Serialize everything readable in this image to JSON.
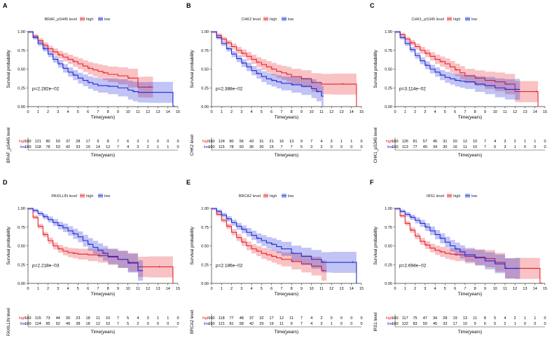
{
  "figure": {
    "shared": {
      "xlabel": "Time(years)",
      "ylabel": "Survival probability",
      "x_ticks": [
        "0",
        "1",
        "2",
        "3",
        "4",
        "5",
        "6",
        "7",
        "8",
        "9",
        "10",
        "11",
        "12",
        "13",
        "14",
        "15"
      ],
      "y_ticks": [
        "0.00",
        "0.25",
        "0.50",
        "0.75",
        "1.00"
      ],
      "high_label": "high",
      "low_label": "low",
      "high_color": "#e8232a",
      "low_color": "#1f2ad6"
    }
  },
  "chart_data": [
    {
      "type": "line",
      "panel_letter": "A",
      "legend_title": "BRAF_pS445 level",
      "table_ylabel": "BRAF_pS445 level",
      "pvalue": "p=2.282e−02",
      "xlim": [
        0,
        15
      ],
      "ylim": [
        0,
        1
      ],
      "series": [
        {
          "name": "high",
          "x": [
            0,
            0.5,
            1,
            1.5,
            2,
            2.5,
            3,
            3.5,
            4,
            4.5,
            5,
            5.5,
            6,
            6.5,
            7,
            7.5,
            8,
            9,
            10,
            11,
            11.5,
            12,
            12.5
          ],
          "y": [
            1,
            0.94,
            0.88,
            0.82,
            0.77,
            0.73,
            0.69,
            0.66,
            0.63,
            0.6,
            0.57,
            0.54,
            0.51,
            0.49,
            0.47,
            0.45,
            0.43,
            0.41,
            0.38,
            0.26,
            0.26,
            0.26,
            0.26
          ]
        },
        {
          "name": "low",
          "x": [
            0,
            0.5,
            1,
            1.5,
            2,
            2.5,
            3,
            3.5,
            4,
            4.5,
            5,
            5.5,
            6,
            6.5,
            7,
            8,
            9,
            10,
            10.5,
            11,
            12,
            14.5
          ],
          "y": [
            1,
            0.92,
            0.84,
            0.77,
            0.7,
            0.63,
            0.57,
            0.51,
            0.46,
            0.42,
            0.38,
            0.35,
            0.32,
            0.3,
            0.28,
            0.27,
            0.25,
            0.22,
            0.2,
            0.19,
            0.19,
            0
          ]
        }
      ],
      "risk_table": {
        "high": [
          "160",
          "121",
          "80",
          "53",
          "37",
          "28",
          "17",
          "9",
          "8",
          "7",
          "6",
          "3",
          "1",
          "0",
          "0",
          "0"
        ],
        "low": [
          "160",
          "118",
          "78",
          "53",
          "42",
          "33",
          "19",
          "14",
          "12",
          "7",
          "4",
          "3",
          "2",
          "1",
          "1",
          "0"
        ]
      }
    },
    {
      "type": "line",
      "panel_letter": "B",
      "legend_title": "CHK2 level",
      "table_ylabel": "CHK2 level",
      "pvalue": "p=2.388e−02",
      "xlim": [
        0,
        15
      ],
      "ylim": [
        0,
        1
      ],
      "series": [
        {
          "name": "high",
          "x": [
            0,
            0.5,
            1,
            1.5,
            2,
            2.5,
            3,
            3.5,
            4,
            4.5,
            5,
            5.5,
            6,
            6.5,
            7,
            7.5,
            8,
            9,
            10,
            11,
            12,
            13,
            14,
            14.5
          ],
          "y": [
            1,
            0.95,
            0.9,
            0.85,
            0.8,
            0.75,
            0.71,
            0.67,
            0.63,
            0.59,
            0.56,
            0.53,
            0.5,
            0.47,
            0.45,
            0.43,
            0.4,
            0.37,
            0.32,
            0.3,
            0.3,
            0.3,
            0.3,
            0
          ]
        },
        {
          "name": "low",
          "x": [
            0,
            0.5,
            1,
            1.5,
            2,
            2.5,
            3,
            3.5,
            4,
            4.5,
            5,
            5.5,
            6,
            6.5,
            7,
            8,
            9,
            10,
            10.5,
            11,
            11.2
          ],
          "y": [
            1,
            0.92,
            0.84,
            0.77,
            0.7,
            0.64,
            0.58,
            0.53,
            0.48,
            0.44,
            0.4,
            0.37,
            0.35,
            0.33,
            0.31,
            0.29,
            0.27,
            0.24,
            0.2,
            0.14,
            0.14
          ]
        }
      ],
      "risk_table": {
        "high": [
          "160",
          "124",
          "80",
          "56",
          "43",
          "31",
          "21",
          "16",
          "13",
          "9",
          "7",
          "4",
          "3",
          "1",
          "1",
          "0"
        ],
        "low": [
          "160",
          "115",
          "78",
          "50",
          "36",
          "30",
          "15",
          "7",
          "7",
          "5",
          "3",
          "2",
          "0",
          "0",
          "0",
          "0"
        ]
      }
    },
    {
      "type": "line",
      "panel_letter": "C",
      "legend_title": "CHK1_pS345 level",
      "table_ylabel": "CHK1_pS345 level",
      "pvalue": "p=3.114e−02",
      "xlim": [
        0,
        15
      ],
      "ylim": [
        0,
        1
      ],
      "series": [
        {
          "name": "high",
          "x": [
            0,
            0.5,
            1,
            1.5,
            2,
            2.5,
            3,
            3.5,
            4,
            4.5,
            5,
            5.5,
            6,
            6.5,
            7,
            8,
            9,
            10,
            11,
            12,
            13,
            14,
            14.3
          ],
          "y": [
            1,
            0.96,
            0.9,
            0.85,
            0.8,
            0.75,
            0.71,
            0.67,
            0.63,
            0.6,
            0.57,
            0.53,
            0.49,
            0.45,
            0.41,
            0.38,
            0.35,
            0.33,
            0.3,
            0.2,
            0.2,
            0.2,
            0
          ]
        },
        {
          "name": "low",
          "x": [
            0,
            0.5,
            1,
            1.5,
            2,
            2.5,
            3,
            3.5,
            4,
            4.5,
            5,
            5.5,
            6,
            6.5,
            7,
            8,
            9,
            10,
            11,
            12,
            12.5
          ],
          "y": [
            1,
            0.92,
            0.84,
            0.76,
            0.68,
            0.61,
            0.55,
            0.5,
            0.46,
            0.42,
            0.39,
            0.37,
            0.35,
            0.34,
            0.33,
            0.3,
            0.28,
            0.25,
            0.23,
            0.23,
            0.23
          ]
        }
      ],
      "risk_table": {
        "high": [
          "160",
          "126",
          "81",
          "57",
          "45",
          "31",
          "20",
          "12",
          "10",
          "7",
          "4",
          "3",
          "2",
          "1",
          "1",
          "0"
        ],
        "low": [
          "160",
          "113",
          "77",
          "49",
          "34",
          "30",
          "16",
          "11",
          "10",
          "7",
          "6",
          "3",
          "1",
          "0",
          "0",
          "0"
        ]
      }
    },
    {
      "type": "line",
      "panel_letter": "D",
      "legend_title": "PAXILLIN level",
      "table_ylabel": "PAXILLIN level",
      "pvalue": "p=2.218e−03",
      "xlim": [
        0,
        15
      ],
      "ylim": [
        0,
        1
      ],
      "series": [
        {
          "name": "high",
          "x": [
            0,
            0.5,
            1,
            1.5,
            2,
            2.5,
            3,
            3.5,
            4,
            4.5,
            5,
            6,
            7,
            8,
            9,
            10,
            11,
            12,
            13,
            14,
            14.5
          ],
          "y": [
            1,
            0.88,
            0.76,
            0.65,
            0.57,
            0.5,
            0.46,
            0.43,
            0.41,
            0.4,
            0.39,
            0.38,
            0.37,
            0.35,
            0.32,
            0.28,
            0.22,
            0.22,
            0.22,
            0.22,
            0
          ]
        },
        {
          "name": "low",
          "x": [
            0,
            0.5,
            1,
            1.5,
            2,
            2.5,
            3,
            3.5,
            4,
            4.5,
            5,
            5.5,
            6,
            6.5,
            7,
            7.5,
            8,
            9,
            10,
            11,
            11.5
          ],
          "y": [
            1,
            0.97,
            0.93,
            0.89,
            0.85,
            0.81,
            0.77,
            0.74,
            0.7,
            0.66,
            0.62,
            0.57,
            0.52,
            0.48,
            0.44,
            0.4,
            0.36,
            0.32,
            0.27,
            0.17,
            0.17
          ]
        }
      ],
      "risk_table": {
        "high": [
          "160",
          "115",
          "73",
          "44",
          "30",
          "23",
          "18",
          "11",
          "10",
          "7",
          "5",
          "4",
          "3",
          "1",
          "1",
          "0"
        ],
        "low": [
          "160",
          "124",
          "85",
          "62",
          "49",
          "38",
          "18",
          "12",
          "10",
          "7",
          "5",
          "2",
          "0",
          "0",
          "0",
          "0"
        ]
      }
    },
    {
      "type": "line",
      "panel_letter": "E",
      "legend_title": "BRCA2 level",
      "table_ylabel": "BRCA2 level",
      "pvalue": "p=2.186e−02",
      "xlim": [
        0,
        15
      ],
      "ylim": [
        0,
        1
      ],
      "series": [
        {
          "name": "high",
          "x": [
            0,
            0.5,
            1,
            1.5,
            2,
            2.5,
            3,
            3.5,
            4,
            4.5,
            5,
            5.5,
            6,
            6.5,
            7,
            8,
            9,
            10,
            11,
            11.5
          ],
          "y": [
            1,
            0.92,
            0.84,
            0.76,
            0.68,
            0.61,
            0.55,
            0.5,
            0.46,
            0.43,
            0.4,
            0.38,
            0.36,
            0.34,
            0.32,
            0.29,
            0.26,
            0.23,
            0.17,
            0.17
          ]
        },
        {
          "name": "low",
          "x": [
            0,
            0.5,
            1,
            1.5,
            2,
            2.5,
            3,
            3.5,
            4,
            4.5,
            5,
            5.5,
            6,
            6.5,
            7,
            8,
            9,
            10,
            11,
            12,
            13,
            14,
            14.5
          ],
          "y": [
            1,
            0.96,
            0.91,
            0.86,
            0.81,
            0.76,
            0.72,
            0.68,
            0.64,
            0.6,
            0.57,
            0.54,
            0.52,
            0.49,
            0.46,
            0.4,
            0.36,
            0.32,
            0.28,
            0.28,
            0.28,
            0.28,
            0
          ]
        }
      ],
      "risk_table": {
        "high": [
          "160",
          "118",
          "77",
          "48",
          "37",
          "32",
          "17",
          "12",
          "11",
          "7",
          "4",
          "2",
          "0",
          "0",
          "0",
          "0"
        ],
        "low": [
          "160",
          "121",
          "81",
          "58",
          "42",
          "29",
          "19",
          "11",
          "9",
          "7",
          "4",
          "3",
          "1",
          "0",
          "0",
          "0"
        ]
      }
    },
    {
      "type": "line",
      "panel_letter": "F",
      "legend_title": "IRS1 level",
      "table_ylabel": "IRS1 level",
      "pvalue": "p=2.694e−02",
      "xlim": [
        0,
        15
      ],
      "ylim": [
        0,
        1
      ],
      "series": [
        {
          "name": "high",
          "x": [
            0,
            0.5,
            1,
            1.5,
            2,
            2.5,
            3,
            3.5,
            4,
            4.5,
            5,
            5.5,
            6,
            7,
            8,
            9,
            10,
            11,
            12,
            13,
            14,
            14.5
          ],
          "y": [
            1,
            0.9,
            0.8,
            0.71,
            0.63,
            0.56,
            0.51,
            0.47,
            0.44,
            0.42,
            0.4,
            0.39,
            0.38,
            0.36,
            0.35,
            0.33,
            0.28,
            0.2,
            0.2,
            0.2,
            0.2,
            0
          ]
        },
        {
          "name": "low",
          "x": [
            0,
            0.5,
            1,
            1.5,
            2,
            2.5,
            3,
            3.5,
            4,
            4.5,
            5,
            5.5,
            6,
            6.5,
            7,
            8,
            9,
            10,
            11,
            12,
            12.5
          ],
          "y": [
            1,
            0.96,
            0.92,
            0.88,
            0.84,
            0.8,
            0.75,
            0.7,
            0.65,
            0.6,
            0.55,
            0.5,
            0.46,
            0.42,
            0.38,
            0.34,
            0.3,
            0.26,
            0.2,
            0.2,
            0.2
          ]
        }
      ],
      "risk_table": {
        "high": [
          "160",
          "117",
          "75",
          "47",
          "34",
          "28",
          "19",
          "13",
          "11",
          "8",
          "5",
          "4",
          "2",
          "1",
          "1",
          "0"
        ],
        "low": [
          "160",
          "122",
          "83",
          "59",
          "45",
          "33",
          "17",
          "10",
          "9",
          "6",
          "5",
          "2",
          "1",
          "0",
          "0",
          "0"
        ]
      }
    }
  ]
}
